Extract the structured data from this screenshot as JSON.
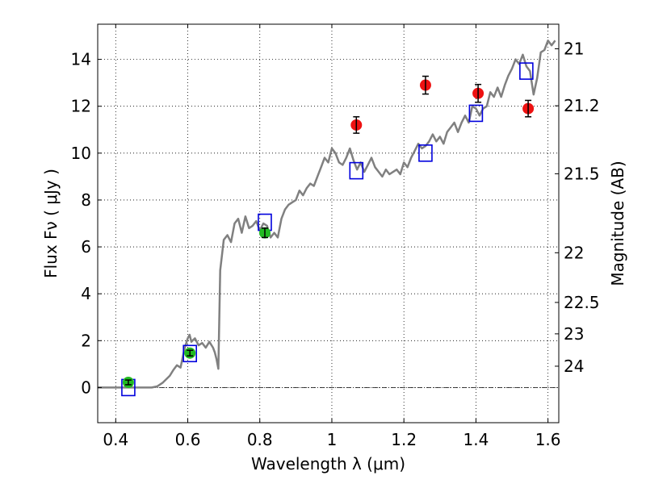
{
  "chart_data": {
    "type": "scatter",
    "xlabel": "Wavelength  λ (μm)",
    "ylabel": "Flux  Fν  ( μJy )",
    "ylabel_right": "Magnitude (AB)",
    "xlim": [
      0.35,
      1.63
    ],
    "ylim": [
      -1.5,
      15.5
    ],
    "grid": true,
    "x_ticks": [
      {
        "value": 0.4,
        "label": "0.4"
      },
      {
        "value": 0.6,
        "label": "0.6"
      },
      {
        "value": 0.8,
        "label": "0.8"
      },
      {
        "value": 1.0,
        "label": "1"
      },
      {
        "value": 1.2,
        "label": "1.2"
      },
      {
        "value": 1.4,
        "label": "1.4"
      },
      {
        "value": 1.6,
        "label": "1.6"
      }
    ],
    "y_ticks": [
      {
        "value": 0,
        "label": "0"
      },
      {
        "value": 2,
        "label": "2"
      },
      {
        "value": 4,
        "label": "4"
      },
      {
        "value": 6,
        "label": "6"
      },
      {
        "value": 8,
        "label": "8"
      },
      {
        "value": 10,
        "label": "10"
      },
      {
        "value": 12,
        "label": "12"
      },
      {
        "value": 14,
        "label": "14"
      }
    ],
    "right_ticks": [
      {
        "label": "21",
        "flux": 14.45
      },
      {
        "label": "21.2",
        "flux": 12.02
      },
      {
        "label": "21.5",
        "flux": 9.12
      },
      {
        "label": "22",
        "flux": 5.75
      },
      {
        "label": "22.5",
        "flux": 3.63
      },
      {
        "label": "23",
        "flux": 2.29
      },
      {
        "label": "24",
        "flux": 0.91
      }
    ],
    "reference_line_y": 0,
    "series": [
      {
        "kind": "model_spectrum",
        "color": "#808080",
        "x": [
          0.35,
          0.4,
          0.45,
          0.5,
          0.515,
          0.53,
          0.55,
          0.56,
          0.57,
          0.58,
          0.59,
          0.6,
          0.605,
          0.61,
          0.62,
          0.63,
          0.64,
          0.65,
          0.66,
          0.67,
          0.675,
          0.68,
          0.685,
          0.69,
          0.7,
          0.71,
          0.72,
          0.73,
          0.74,
          0.75,
          0.76,
          0.77,
          0.78,
          0.79,
          0.8,
          0.81,
          0.82,
          0.83,
          0.84,
          0.85,
          0.86,
          0.87,
          0.88,
          0.89,
          0.9,
          0.91,
          0.92,
          0.93,
          0.94,
          0.95,
          0.96,
          0.97,
          0.98,
          0.99,
          1.0,
          1.01,
          1.02,
          1.03,
          1.04,
          1.05,
          1.06,
          1.07,
          1.08,
          1.09,
          1.1,
          1.11,
          1.12,
          1.13,
          1.14,
          1.15,
          1.16,
          1.17,
          1.18,
          1.19,
          1.2,
          1.21,
          1.22,
          1.23,
          1.24,
          1.25,
          1.26,
          1.27,
          1.28,
          1.29,
          1.3,
          1.31,
          1.32,
          1.33,
          1.34,
          1.35,
          1.36,
          1.37,
          1.38,
          1.39,
          1.4,
          1.41,
          1.42,
          1.43,
          1.44,
          1.45,
          1.46,
          1.47,
          1.48,
          1.49,
          1.5,
          1.51,
          1.52,
          1.53,
          1.54,
          1.55,
          1.56,
          1.57,
          1.58,
          1.59,
          1.6,
          1.61,
          1.62
        ],
        "y": [
          0,
          0,
          0,
          0,
          0.05,
          0.2,
          0.5,
          0.75,
          0.95,
          0.85,
          1.6,
          2.1,
          2.25,
          1.95,
          2.1,
          1.8,
          1.9,
          1.7,
          1.95,
          1.7,
          1.5,
          1.2,
          0.8,
          5.0,
          6.3,
          6.5,
          6.2,
          7.0,
          7.2,
          6.6,
          7.3,
          6.8,
          6.9,
          7.1,
          6.7,
          7.0,
          6.9,
          6.4,
          6.6,
          6.4,
          7.2,
          7.6,
          7.8,
          7.9,
          8.0,
          8.4,
          8.2,
          8.5,
          8.7,
          8.6,
          9.0,
          9.4,
          9.8,
          9.6,
          10.2,
          10.0,
          9.6,
          9.5,
          9.8,
          10.2,
          9.7,
          9.3,
          9.6,
          9.2,
          9.5,
          9.8,
          9.4,
          9.2,
          9.0,
          9.3,
          9.1,
          9.2,
          9.3,
          9.1,
          9.6,
          9.4,
          9.8,
          10.1,
          10.4,
          10.2,
          10.3,
          10.5,
          10.8,
          10.5,
          10.7,
          10.4,
          10.9,
          11.1,
          11.3,
          10.9,
          11.3,
          11.6,
          11.3,
          12.0,
          11.9,
          11.6,
          11.9,
          12.0,
          12.6,
          12.4,
          12.8,
          12.4,
          12.9,
          13.3,
          13.6,
          14.0,
          13.8,
          14.2,
          13.7,
          13.5,
          12.5,
          13.2,
          14.3,
          14.4,
          14.8,
          14.6,
          14.8
        ]
      },
      {
        "kind": "model_photometry",
        "marker": "open-square",
        "color": "#0000dd",
        "x": [
          0.435,
          0.606,
          0.814,
          1.068,
          1.26,
          1.4,
          1.54
        ],
        "y": [
          0.0,
          1.45,
          7.05,
          9.25,
          10.0,
          11.7,
          13.5
        ]
      },
      {
        "kind": "observed_optical",
        "marker": "filled-circle",
        "color": "#22bb22",
        "x": [
          0.435,
          0.606,
          0.814
        ],
        "y": [
          0.22,
          1.47,
          6.6
        ],
        "yerr": [
          0.1,
          0.12,
          0.2
        ]
      },
      {
        "kind": "observed_nir",
        "marker": "filled-circle",
        "color": "#ee1111",
        "x": [
          1.068,
          1.26,
          1.406,
          1.545
        ],
        "y": [
          11.2,
          12.9,
          12.55,
          11.9
        ],
        "yerr": [
          0.35,
          0.38,
          0.38,
          0.35
        ]
      }
    ]
  }
}
